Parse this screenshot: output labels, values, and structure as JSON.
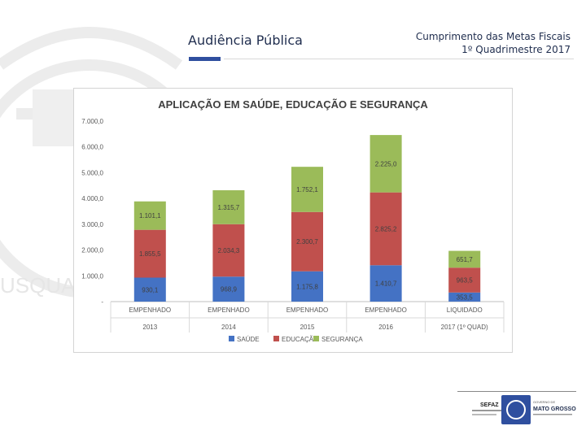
{
  "header": {
    "title": "Audiência Pública",
    "subtitle_line1": "Cumprimento das Metas Fiscais",
    "subtitle_line2": "1º Quadrimestre 2017"
  },
  "watermark": {
    "text": "USQUAM"
  },
  "footer": {
    "sefaz_label": "SEFAZ",
    "gov_line1": "GOVERNO DE",
    "gov_line2": "MATO GROSSO"
  },
  "colors": {
    "saude": "#4472c4",
    "educacao": "#c0504d",
    "seguranca": "#9bbb59",
    "title_text": "#1f2d4e",
    "accent_bar": "#2f4f9f"
  },
  "chart_data": {
    "type": "bar",
    "stacked": true,
    "title": "APLICAÇÃO EM SAÚDE, EDUCAÇÃO E SEGURANÇA",
    "categories": [
      [
        "EMPENHADO",
        "2013"
      ],
      [
        "EMPENHADO",
        "2014"
      ],
      [
        "EMPENHADO",
        "2015"
      ],
      [
        "EMPENHADO",
        "2016"
      ],
      [
        "LIQUIDADO",
        "2017 (1º QUAD)"
      ]
    ],
    "series": [
      {
        "name": "SAÚDE",
        "values": [
          930.1,
          968.9,
          1175.8,
          1410.7,
          353.5
        ],
        "labels": [
          "930,1",
          "968,9",
          "1.175,8",
          "1.410,7",
          "353,5"
        ]
      },
      {
        "name": "EDUCAÇÃO",
        "values": [
          1855.5,
          2034.3,
          2300.7,
          2825.2,
          963.5
        ],
        "labels": [
          "1.855,5",
          "2.034,3",
          "2.300,7",
          "2.825,2",
          "963,5"
        ]
      },
      {
        "name": "SEGURANÇA",
        "values": [
          1101.1,
          1315.7,
          1752.1,
          2225.0,
          651.7
        ],
        "labels": [
          "1.101,1",
          "1.315,7",
          "1.752,1",
          "2.225,0",
          "651,7"
        ]
      }
    ],
    "yticks": [
      0,
      1000,
      2000,
      3000,
      4000,
      5000,
      6000,
      7000
    ],
    "ytick_labels": [
      "-",
      "1.000,0",
      "2.000,0",
      "3.000,0",
      "4.000,0",
      "5.000,0",
      "6.000,0",
      "7.000,0"
    ],
    "ylim": [
      0,
      7000
    ],
    "legend_position": "bottom"
  }
}
